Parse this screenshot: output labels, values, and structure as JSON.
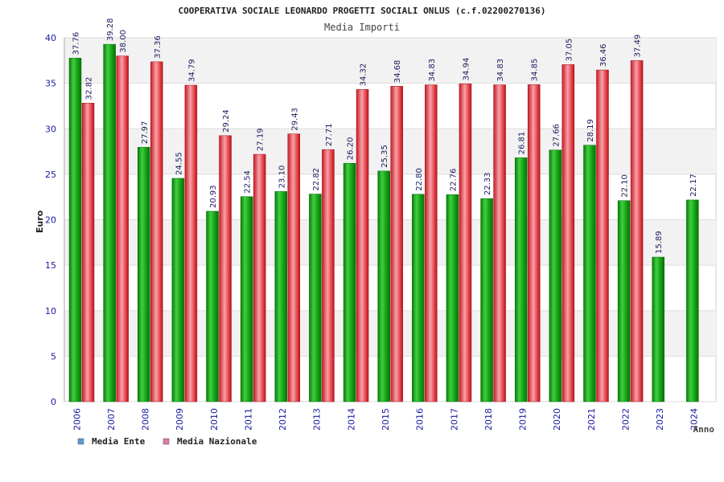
{
  "chart_data": {
    "type": "bar",
    "title": "COOPERATIVA SOCIALE LEONARDO PROGETTI SOCIALI ONLUS (c.f.02200270136)",
    "subtitle": "Media Importi",
    "xlabel": "Anno",
    "ylabel": "Euro",
    "ylim": [
      0,
      40
    ],
    "yticks": [
      "0",
      "5",
      "10",
      "15",
      "20",
      "25",
      "30",
      "35",
      "40"
    ],
    "grid": true,
    "legend_position": "bottom-left",
    "categories": [
      "2006",
      "2007",
      "2008",
      "2009",
      "2010",
      "2011",
      "2012",
      "2013",
      "2014",
      "2015",
      "2016",
      "2017",
      "2018",
      "2019",
      "2020",
      "2021",
      "2022",
      "2023",
      "2024"
    ],
    "series": [
      {
        "name": "Media Ente",
        "color": "#1aa81a",
        "legend_color": "#5b9bd5",
        "values": [
          37.76,
          39.28,
          27.97,
          24.55,
          20.93,
          22.54,
          23.1,
          22.82,
          26.2,
          25.35,
          22.8,
          22.76,
          22.33,
          26.81,
          27.66,
          28.19,
          22.1,
          15.89,
          22.17
        ],
        "labels": [
          "37.76",
          "39.28",
          "27.97",
          "24.55",
          "20.93",
          "22.54",
          "23.10",
          "22.82",
          "26.20",
          "25.35",
          "22.80",
          "22.76",
          "22.33",
          "26.81",
          "27.66",
          "28.19",
          "22.10",
          "15.89",
          "22.17"
        ]
      },
      {
        "name": "Media Nazionale",
        "color": "#e8303a",
        "legend_color": "#e07aa8",
        "values": [
          32.82,
          38.0,
          37.36,
          34.79,
          29.24,
          27.19,
          29.43,
          27.71,
          34.32,
          34.68,
          34.83,
          34.94,
          34.83,
          34.85,
          37.05,
          36.46,
          37.49,
          null,
          null
        ],
        "labels": [
          "32.82",
          "38.00",
          "37.36",
          "34.79",
          "29.24",
          "27.19",
          "29.43",
          "27.71",
          "34.32",
          "34.68",
          "34.83",
          "34.94",
          "34.83",
          "34.85",
          "37.05",
          "36.46",
          "37.49",
          null,
          null
        ]
      }
    ]
  }
}
